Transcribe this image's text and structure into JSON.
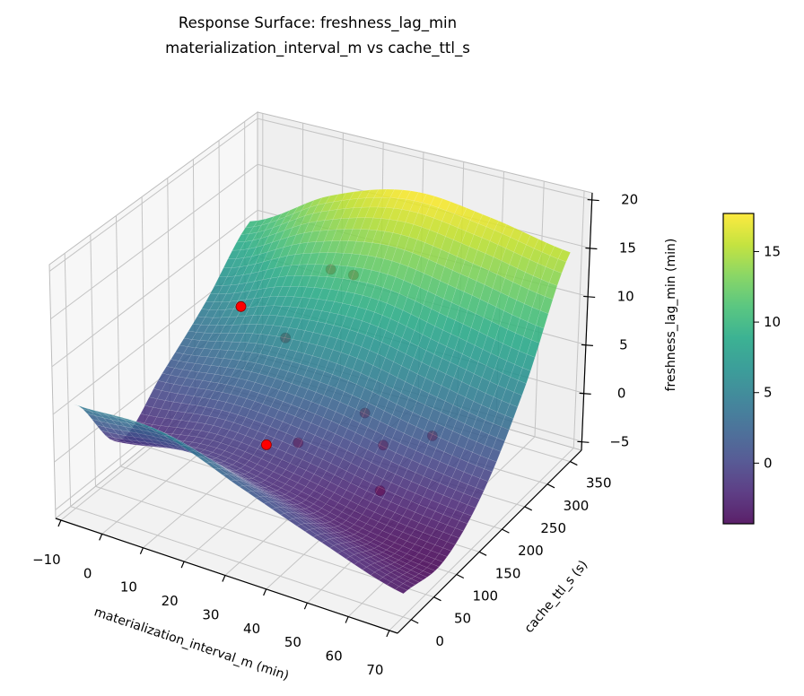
{
  "chart_data": {
    "type": "surface",
    "title_lines": [
      "Response Surface: freshness_lag_min",
      "materialization_interval_m vs cache_ttl_s"
    ],
    "xlabel": "materialization_interval_m (min)",
    "ylabel": "cache_ttl_s (s)",
    "zlabel": "freshness_lag_min (min)",
    "xlim": [
      -11.3,
      72
    ],
    "ylim": [
      -30,
      375
    ],
    "zlim": [
      -5.9,
      20.7
    ],
    "xticks": [
      -10,
      0,
      10,
      20,
      30,
      40,
      50,
      60,
      70
    ],
    "xtick_labels": [
      "−10",
      "0",
      "10",
      "20",
      "30",
      "40",
      "50",
      "60",
      "70"
    ],
    "yticks": [
      0,
      50,
      100,
      150,
      200,
      250,
      300,
      350
    ],
    "ytick_labels": [
      "0",
      "50",
      "100",
      "150",
      "200",
      "250",
      "300",
      "350"
    ],
    "zticks": [
      -5,
      0,
      5,
      10,
      15,
      20
    ],
    "ztick_labels": [
      "−5",
      "0",
      "5",
      "10",
      "15",
      "20"
    ],
    "grid": true,
    "colormap": "viridis",
    "surface": {
      "x": [
        -10,
        10,
        30,
        50,
        70
      ],
      "y": [
        0,
        87.5,
        175,
        262.5,
        350
      ],
      "z": [
        [
          5,
          5,
          2,
          -1,
          -3.5
        ],
        [
          -2.5,
          -1,
          -2,
          -3.5,
          -4.3
        ],
        [
          1,
          2,
          1.5,
          0,
          -1
        ],
        [
          5,
          8,
          9,
          7.5,
          6
        ],
        [
          10,
          15,
          17.7,
          17,
          15.5
        ]
      ]
    },
    "points": [
      {
        "x": 12.5,
        "y": 151,
        "z": 12
      },
      {
        "x": 26.3,
        "y": 88,
        "z": 2
      },
      {
        "x": 12.2,
        "y": 335,
        "z": 8
      },
      {
        "x": 17.8,
        "y": 336,
        "z": 8
      },
      {
        "x": 10.8,
        "y": 255,
        "z": 4
      },
      {
        "x": 33.8,
        "y": 230,
        "z": 0
      },
      {
        "x": 25.7,
        "y": 159,
        "z": -1
      },
      {
        "x": 40,
        "y": 217,
        "z": -2
      },
      {
        "x": 47.4,
        "y": 259,
        "z": -2
      },
      {
        "x": 46.8,
        "y": 153,
        "z": -3
      }
    ],
    "point_color": "#ff0000",
    "point_edge_color": "#8b0000",
    "colorbar": {
      "range": [
        -4.3,
        17.7
      ],
      "ticks": [
        0,
        5,
        10,
        15
      ],
      "tick_labels": [
        "0",
        "5",
        "10",
        "15"
      ]
    }
  }
}
